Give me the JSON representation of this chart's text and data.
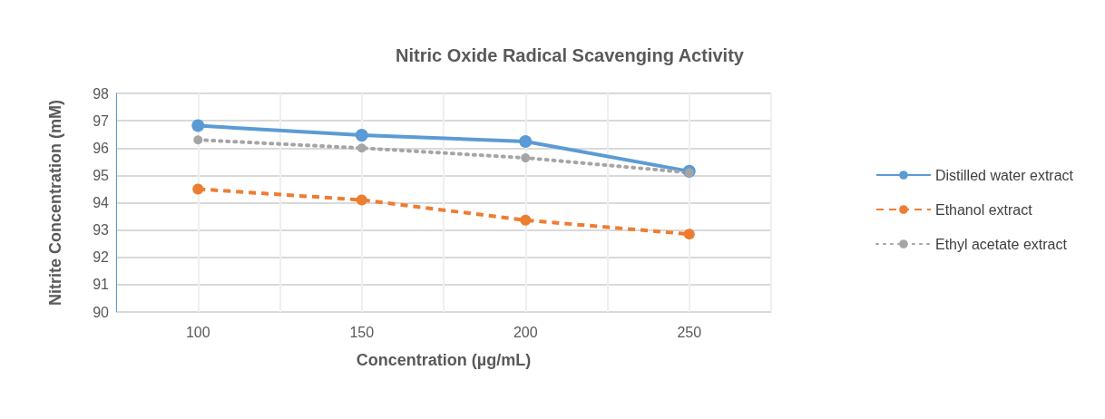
{
  "chart_data": {
    "type": "line",
    "title": "Nitric Oxide Radical Scavenging Activity",
    "xlabel": "Concentration (µg/mL)",
    "ylabel": "Nitrite Concentration (mM)",
    "x": [
      100,
      150,
      200,
      250
    ],
    "xlim": [
      75,
      275
    ],
    "xticks": [
      {
        "value": 75,
        "label": null
      },
      100,
      {
        "value": 125,
        "label": null
      },
      150,
      {
        "value": 175,
        "label": null
      },
      200,
      {
        "value": 225,
        "label": null
      },
      250,
      {
        "value": 275,
        "label": null
      }
    ],
    "ylim": [
      90,
      98
    ],
    "yticks": [
      90,
      91,
      92,
      93,
      94,
      95,
      96,
      97,
      98
    ],
    "grid": true,
    "legend": "right",
    "marker": "circle",
    "series": [
      {
        "name": "Distilled water extract",
        "color": "#5b9bd5",
        "line_style": "solid",
        "values": [
          96.82,
          96.47,
          96.24,
          95.15
        ]
      },
      {
        "name": "Ethanol extract",
        "color": "#ed7d31",
        "line_style": "dashed",
        "values": [
          94.5,
          94.1,
          93.36,
          92.85
        ]
      },
      {
        "name": "Ethyl acetate extract",
        "color": "#a5a5a5",
        "line_style": "dotted",
        "values": [
          96.3,
          96.0,
          95.64,
          95.1
        ]
      }
    ]
  }
}
